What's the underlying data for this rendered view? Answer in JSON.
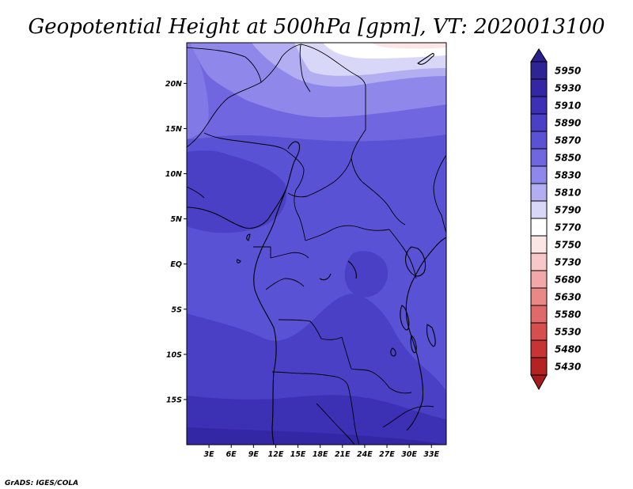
{
  "title": "Geopotential Height at 500hPa [gpm], VT: 2020013100",
  "credit": "GrADS: IGES/COLA",
  "map": {
    "lon_range": [
      0,
      35
    ],
    "lat_range": [
      -20,
      24.5
    ],
    "lat_ticks": [
      {
        "value": 20,
        "label": "20N"
      },
      {
        "value": 15,
        "label": "15N"
      },
      {
        "value": 10,
        "label": "10N"
      },
      {
        "value": 5,
        "label": "5N"
      },
      {
        "value": 0,
        "label": "EQ"
      },
      {
        "value": -5,
        "label": "5S"
      },
      {
        "value": -10,
        "label": "10S"
      },
      {
        "value": -15,
        "label": "15S"
      }
    ],
    "lon_ticks": [
      {
        "value": 3,
        "label": "3E"
      },
      {
        "value": 6,
        "label": "6E"
      },
      {
        "value": 9,
        "label": "9E"
      },
      {
        "value": 12,
        "label": "12E"
      },
      {
        "value": 15,
        "label": "15E"
      },
      {
        "value": 18,
        "label": "18E"
      },
      {
        "value": 21,
        "label": "21E"
      },
      {
        "value": 24,
        "label": "24E"
      },
      {
        "value": 27,
        "label": "27E"
      },
      {
        "value": 30,
        "label": "30E"
      },
      {
        "value": 33,
        "label": "33E"
      }
    ]
  },
  "colorbar": {
    "levels": [
      {
        "label": "5950",
        "color": "#2e2496"
      },
      {
        "label": "5930",
        "color": "#3427a6"
      },
      {
        "label": "5910",
        "color": "#3c30b4"
      },
      {
        "label": "5890",
        "color": "#4a40c6"
      },
      {
        "label": "5870",
        "color": "#5a52d4"
      },
      {
        "label": "5850",
        "color": "#7067e0"
      },
      {
        "label": "5830",
        "color": "#8f88ea"
      },
      {
        "label": "5810",
        "color": "#b3aef2"
      },
      {
        "label": "5790",
        "color": "#d9d7f8"
      },
      {
        "label": "5770",
        "color": "#ffffff"
      },
      {
        "label": "5750",
        "color": "#fce5e5"
      },
      {
        "label": "5730",
        "color": "#f8c8c8"
      },
      {
        "label": "5680",
        "color": "#f2a8a8"
      },
      {
        "label": "5630",
        "color": "#ea8888"
      },
      {
        "label": "5580",
        "color": "#e06a6a"
      },
      {
        "label": "5530",
        "color": "#d64e4e"
      },
      {
        "label": "5480",
        "color": "#c83434"
      },
      {
        "label": "5430",
        "color": "#b52222"
      }
    ],
    "top_arrow_color": "#2a1f8c",
    "bottom_arrow_color": "#a51c1c"
  }
}
